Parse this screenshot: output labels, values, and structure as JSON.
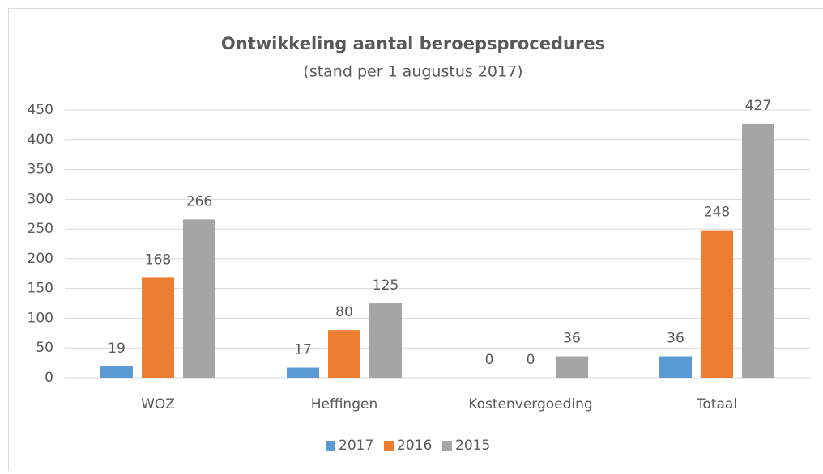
{
  "chart_data": {
    "type": "bar",
    "title": "Ontwikkeling aantal beroepsprocedures",
    "subtitle": "(stand per 1 augustus 2017)",
    "categories": [
      "WOZ",
      "Heffingen",
      "Kostenvergoeding",
      "Totaal"
    ],
    "series": [
      {
        "name": "2017",
        "color": "#5b9bd5",
        "values": [
          19,
          17,
          0,
          36
        ]
      },
      {
        "name": "2016",
        "color": "#ed7d31",
        "values": [
          168,
          80,
          0,
          248
        ]
      },
      {
        "name": "2015",
        "color": "#a5a5a5",
        "values": [
          266,
          125,
          36,
          427
        ]
      }
    ],
    "ylim": [
      0,
      450
    ],
    "yticks": [
      0,
      50,
      100,
      150,
      200,
      250,
      300,
      350,
      400,
      450
    ],
    "grid": true,
    "legend": "bottom"
  }
}
